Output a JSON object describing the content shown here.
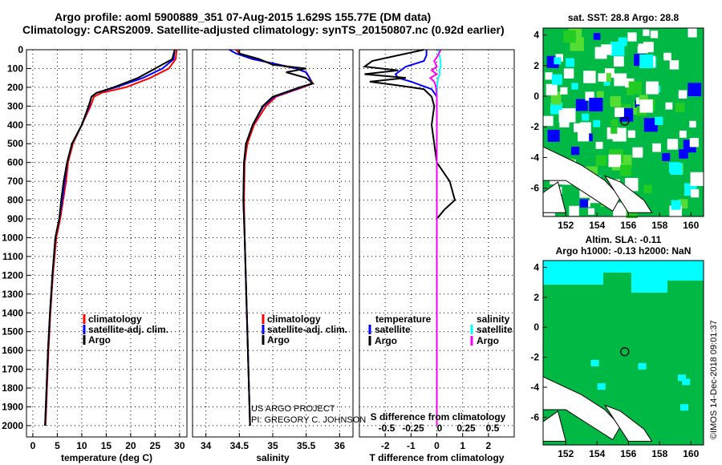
{
  "title_line1": "Argo profile: aoml 5900889_351 07-Aug-2015 1.629S 155.77E (DM data)",
  "title_line2": "Climatology: CARS2009. Satellite-adjusted climatology: synTS_20150807.nc (0.92d earlier)",
  "credit_line1": "US ARGO PROJECT",
  "credit_line2": "PI: GREGORY C. JOHNSON",
  "side_label": "©IMOS 14-Dec-2018 09:01:37",
  "colors": {
    "climatology": "#ff0000",
    "satellite": "#0000ff",
    "argo": "#000000",
    "sal_sat": "#00ffff",
    "sal_argo": "#ff00ff",
    "ocean": "#00b844",
    "land": "#ffffff"
  },
  "chart_data": [
    {
      "type": "line",
      "name": "temperature",
      "xlabel": "temperature (deg C)",
      "xlim": [
        -1.3,
        31.5
      ],
      "ylim": [
        0,
        2060
      ],
      "xticks": [
        "0",
        "5",
        "10",
        "15",
        "20",
        "25",
        "30"
      ],
      "xtick_values": [
        0,
        5,
        10,
        15,
        20,
        25,
        30
      ],
      "yticks": [
        "0",
        "100",
        "200",
        "300",
        "400",
        "500",
        "600",
        "700",
        "800",
        "900",
        "1000",
        "1100",
        "1200",
        "1300",
        "1400",
        "1500",
        "1600",
        "1700",
        "1800",
        "1900",
        "2000"
      ],
      "legend": [
        "climatology",
        "satellite-adj. clim.",
        "Argo"
      ],
      "depth": [
        0,
        50,
        100,
        150,
        200,
        230,
        250,
        300,
        400,
        500,
        600,
        700,
        800,
        900,
        1000,
        1200,
        1400,
        1600,
        1800,
        2000
      ],
      "series": [
        {
          "name": "climatology",
          "values": [
            29.4,
            29.2,
            27.8,
            24,
            19,
            14,
            12.5,
            11.8,
            10,
            8.2,
            7.2,
            6.8,
            6.2,
            5.6,
            4.8,
            4.1,
            3.6,
            3.2,
            2.9,
            2.6
          ]
        },
        {
          "name": "satellite-adj. clim.",
          "values": [
            29,
            28.8,
            26.5,
            22.5,
            17,
            13,
            12,
            11.5,
            10,
            8,
            7,
            6.5,
            6,
            5.4,
            4.6,
            4,
            3.5,
            3.1,
            2.8,
            2.5
          ]
        },
        {
          "name": "Argo",
          "values": [
            29,
            28.5,
            25,
            21.5,
            16.5,
            13,
            12,
            11.4,
            10,
            8,
            7,
            6.3,
            5.8,
            5.4,
            4.6,
            4,
            3.5,
            3.1,
            2.8,
            2.5
          ]
        }
      ]
    },
    {
      "type": "line",
      "name": "salinity",
      "xlabel": "salinity",
      "xlim": [
        33.8,
        36.2
      ],
      "ylim": [
        0,
        2060
      ],
      "xticks": [
        "34",
        "34.5",
        "35",
        "35.5",
        "36"
      ],
      "xtick_values": [
        34,
        34.5,
        35,
        35.5,
        36
      ],
      "legend": [
        "climatology",
        "satellite-adj. clim.",
        "Argo"
      ],
      "depth": [
        0,
        20,
        50,
        80,
        100,
        120,
        150,
        180,
        200,
        250,
        300,
        400,
        500,
        600,
        800,
        1000,
        1500,
        2000
      ],
      "series": [
        {
          "name": "climatology",
          "values": [
            34.45,
            34.5,
            34.75,
            35.05,
            35.35,
            35.5,
            35.55,
            35.6,
            35.45,
            35.05,
            34.9,
            34.72,
            34.62,
            34.58,
            34.57,
            34.58,
            34.62,
            34.66
          ]
        },
        {
          "name": "satellite-adj. clim.",
          "values": [
            34.35,
            34.45,
            34.7,
            35.1,
            35.35,
            35.5,
            35.55,
            35.58,
            35.42,
            35.02,
            34.86,
            34.7,
            34.6,
            34.57,
            34.56,
            34.58,
            34.62,
            34.66
          ]
        },
        {
          "name": "Argo",
          "values": [
            34.5,
            34.5,
            34.8,
            35,
            35.5,
            35.2,
            35.5,
            35.6,
            35.4,
            35.0,
            34.85,
            34.7,
            34.6,
            34.57,
            34.56,
            34.58,
            34.62,
            34.66
          ]
        }
      ]
    },
    {
      "type": "line",
      "name": "difference",
      "xlabel": "T difference from climatology",
      "x2label": "S difference from climatology",
      "xlim": [
        -3,
        3
      ],
      "ylim": [
        0,
        2060
      ],
      "xticks": [
        "-2",
        "-1",
        "0",
        "1",
        "2"
      ],
      "xtick_values": [
        -2,
        -1,
        0,
        1,
        2
      ],
      "x2ticks": [
        "-0.5",
        "-0.25",
        "0",
        "0.25",
        "0.5"
      ],
      "x2tick_values": [
        -0.5,
        -0.25,
        0,
        0.25,
        0.5
      ],
      "legend_temperature_title": "temperature",
      "legend_salinity_title": "salinity",
      "legend": [
        "satellite",
        "Argo"
      ],
      "depth": [
        0,
        30,
        60,
        90,
        110,
        130,
        150,
        170,
        190,
        210,
        250,
        300,
        400,
        500,
        600,
        700,
        750,
        800,
        850,
        900,
        1000,
        1200,
        1500,
        2000
      ],
      "series": [
        {
          "name": "T satellite",
          "values": [
            -0.4,
            -0.4,
            -0.5,
            -1.2,
            -1.4,
            -1.6,
            -1.5,
            -1.0,
            -0.6,
            -0.2,
            0,
            0,
            0,
            0,
            0,
            0,
            0,
            0,
            0,
            0,
            0,
            0,
            0,
            0
          ]
        },
        {
          "name": "T Argo",
          "values": [
            -0.5,
            -1.5,
            -2.5,
            -2.8,
            -1.5,
            -2.8,
            -1.2,
            -2.6,
            -1.5,
            -0.5,
            -0.2,
            -0.1,
            -0.2,
            -0.1,
            0,
            0.5,
            0.6,
            0.7,
            0.3,
            0,
            0,
            0,
            0,
            0
          ]
        },
        {
          "name": "S satellite",
          "values": [
            0.05,
            0.1,
            0.15,
            0.15,
            0.1,
            0.12,
            0.05,
            0.03,
            0.02,
            0.01,
            0,
            0,
            0,
            0,
            0,
            0,
            0,
            0,
            0,
            0,
            0,
            0,
            0,
            0
          ]
        },
        {
          "name": "S Argo",
          "values": [
            0.15,
            0.05,
            -0.1,
            0.0,
            -0.2,
            0.0,
            -0.25,
            -0.1,
            -0.05,
            -0.02,
            0,
            0,
            0,
            0,
            0,
            0,
            0,
            0,
            0,
            0,
            0,
            0,
            0,
            0
          ]
        }
      ]
    },
    {
      "type": "heatmap",
      "name": "sst-map",
      "title": "sat. SST: 28.8 Argo: 28.8",
      "xticks": [
        "152",
        "154",
        "156",
        "158",
        "160"
      ],
      "yticks": [
        "4",
        "2",
        "0",
        "-2",
        "-4",
        "-6"
      ],
      "argo_lon": 155.77,
      "argo_lat": -1.629
    },
    {
      "type": "heatmap",
      "name": "sla-map",
      "title_line1": "Altim. SLA: -0.11",
      "title_line2": "Argo h1000: -0.13 h2000: NaN",
      "xticks": [
        "152",
        "154",
        "156",
        "158",
        "160"
      ],
      "yticks": [
        "4",
        "2",
        "0",
        "-2",
        "-4",
        "-6"
      ],
      "argo_lon": 155.77,
      "argo_lat": -1.629
    }
  ]
}
